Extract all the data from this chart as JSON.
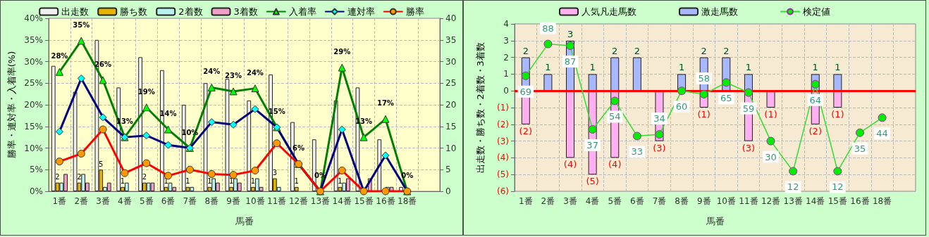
{
  "chart_data": [
    {
      "type": "bar",
      "xlabel": "馬番",
      "ylabel": "勝率・連対率・入着率(%)",
      "categories": [
        "1番",
        "2番",
        "3番",
        "4番",
        "5番",
        "6番",
        "7番",
        "8番",
        "9番",
        "10番",
        "11番",
        "12番",
        "13番",
        "14番",
        "15番",
        "16番",
        "18番",
        null
      ],
      "ylim": [
        0,
        40
      ],
      "yticks": [
        {
          "value": 0,
          "label": "0%"
        },
        {
          "value": 5,
          "label": "5%"
        },
        {
          "value": 10,
          "label": "10%"
        },
        {
          "value": 15,
          "label": "15%"
        },
        {
          "value": 20,
          "label": "20%"
        },
        {
          "value": 25,
          "label": "25%"
        },
        {
          "value": 30,
          "label": "30%"
        },
        {
          "value": 35,
          "label": "35%"
        },
        {
          "value": 40,
          "label": "40%"
        }
      ],
      "y2lim": [
        0,
        40
      ],
      "y2ticks": [
        0,
        5,
        10,
        15,
        20,
        25,
        30,
        35,
        40
      ],
      "grid": true,
      "legend": "top",
      "series": [
        {
          "name": "出走数",
          "axis": "y2",
          "color": "#f0f0f0",
          "values": [
            29,
            23,
            35,
            24,
            31,
            28,
            20,
            25,
            26,
            21,
            27,
            16,
            12,
            21,
            24,
            12,
            1,
            null
          ]
        },
        {
          "name": "勝ち数",
          "axis": "y2",
          "color": "#e6b400",
          "values": [
            2,
            2,
            5,
            1,
            2,
            1,
            1,
            1,
            1,
            1,
            3,
            1,
            0,
            1,
            0,
            0,
            0,
            null
          ],
          "value_labels": [
            "2",
            "2",
            "5",
            "1",
            "2",
            "1",
            "1",
            "1",
            "1",
            "1",
            "3",
            "1",
            null,
            "1",
            null,
            null,
            null,
            null
          ]
        },
        {
          "name": "2着数",
          "axis": "y2",
          "color": "#b8f0f0",
          "values": [
            2,
            4,
            1,
            2,
            2,
            2,
            1,
            3,
            3,
            3,
            1,
            0,
            0,
            2,
            0,
            1,
            0,
            null
          ]
        },
        {
          "name": "3着数",
          "axis": "y2",
          "color": "#f0a0c8",
          "values": [
            4,
            2,
            2,
            0,
            2,
            1,
            0,
            2,
            2,
            1,
            0,
            0,
            0,
            3,
            3,
            1,
            0,
            null
          ]
        },
        {
          "name": "入着率",
          "type": "line",
          "marker": "triangle",
          "color": "#008000",
          "values": [
            27.6,
            34.8,
            25.7,
            12.5,
            19.4,
            14.3,
            10.0,
            24.0,
            23.1,
            23.8,
            14.8,
            6.3,
            0,
            28.6,
            12.5,
            16.7,
            0,
            null
          ],
          "value_labels": [
            "28%",
            "35%",
            "26%",
            "13%",
            "19%",
            "14%",
            "10%",
            "24%",
            "23%",
            "24%",
            "15%",
            "6%",
            "0%",
            "29%",
            "13%",
            "17%",
            "0%",
            null
          ]
        },
        {
          "name": "連対率",
          "type": "line",
          "marker": "diamond",
          "color": "#000080",
          "values": [
            13.8,
            26.1,
            17.1,
            12.5,
            12.9,
            10.7,
            10.0,
            16.0,
            15.4,
            19.0,
            14.8,
            6.3,
            0,
            14.3,
            0,
            8.3,
            0,
            null
          ]
        },
        {
          "name": "勝率",
          "type": "line",
          "marker": "circle",
          "color": "#ff0000",
          "values": [
            6.9,
            8.7,
            14.3,
            4.2,
            6.5,
            3.6,
            5.0,
            4.0,
            3.8,
            4.8,
            11.1,
            6.3,
            0,
            4.8,
            0,
            0,
            0,
            null
          ]
        }
      ]
    },
    {
      "type": "bar",
      "xlabel": "馬番",
      "ylabel": "出走数・勝ち数・2着数・3着数",
      "categories": [
        "1番",
        "2番",
        "3番",
        "4番",
        "5番",
        "6番",
        "7番",
        "8番",
        "9番",
        "10番",
        "11番",
        "12番",
        "13番",
        "14番",
        "15番",
        "16番",
        "18番",
        null
      ],
      "ylim": [
        -6,
        4
      ],
      "yticks": [
        {
          "value": -6,
          "label": "(6)"
        },
        {
          "value": -5,
          "label": "(5)"
        },
        {
          "value": -4,
          "label": "(4)"
        },
        {
          "value": -3,
          "label": "(3)"
        },
        {
          "value": -2,
          "label": "(2)"
        },
        {
          "value": -1,
          "label": "(1)"
        },
        0,
        1,
        2,
        3,
        4
      ],
      "y2lim": [
        0,
        100
      ],
      "stacked": true,
      "grid": true,
      "legend": "top",
      "ref_lines": [
        {
          "axis": "y",
          "value": 0,
          "color": "#ff0000"
        }
      ],
      "series": [
        {
          "name": "人気凡走馬数",
          "color": "#ffb0f0",
          "values": [
            -2,
            0,
            -4,
            -5,
            -4,
            0,
            -3,
            0,
            -1,
            0,
            -3,
            -1,
            0,
            -2,
            -1,
            0,
            0,
            null
          ],
          "value_labels": [
            "(2)",
            null,
            "(4)",
            "(5)",
            "(4)",
            null,
            "(3)",
            null,
            "(1)",
            null,
            "(3)",
            "(1)",
            null,
            "(2)",
            "(1)",
            null,
            null,
            null
          ]
        },
        {
          "name": "激走馬数",
          "color": "#a8b8ff",
          "values": [
            2,
            1,
            3,
            1,
            2,
            2,
            0,
            1,
            2,
            2,
            1,
            0,
            0,
            1,
            1,
            0,
            0,
            null
          ],
          "value_labels": [
            "2",
            "1",
            "3",
            "1",
            "2",
            "2",
            null,
            "1",
            "2",
            "2",
            "1",
            null,
            null,
            "1",
            "1",
            null,
            null,
            null
          ]
        },
        {
          "name": "検定値",
          "type": "line",
          "axis": "y2",
          "marker": "circle",
          "color": "#33dd33",
          "values": [
            69,
            88,
            87,
            37,
            54,
            33,
            34,
            60,
            58,
            65,
            59,
            30,
            12,
            64,
            12,
            35,
            44,
            null
          ],
          "value_labels": [
            "69",
            "88",
            "87",
            "37",
            "54",
            "33",
            "34",
            "60",
            "58",
            "65",
            "59",
            "30",
            "12",
            "64",
            "12",
            "35",
            "44",
            null
          ]
        }
      ]
    }
  ]
}
